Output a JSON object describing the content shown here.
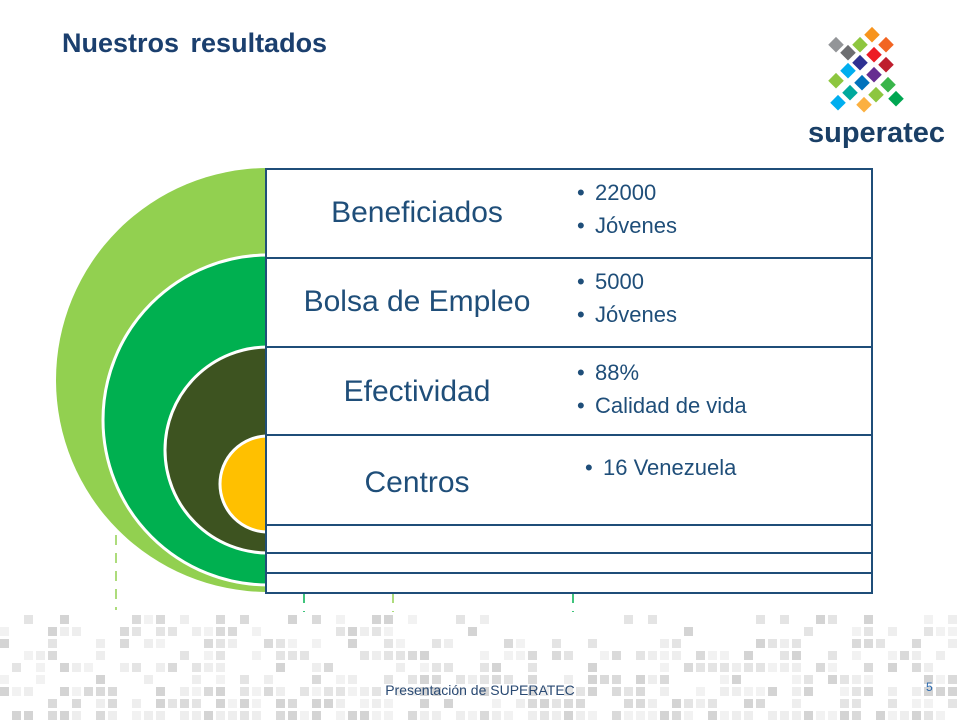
{
  "title": "Nuestros resultados",
  "logo": {
    "text": "superatec"
  },
  "rows": [
    {
      "label": "Beneficiados",
      "bullets": [
        "22000",
        "Jóvenes"
      ]
    },
    {
      "label": "Bolsa de Empleo",
      "bullets": [
        "5000",
        "Jóvenes"
      ]
    },
    {
      "label": "Efectividad",
      "bullets": [
        "88%",
        "Calidad de vida"
      ]
    },
    {
      "label": "Centros",
      "bullets": [
        "16 Venezuela"
      ]
    }
  ],
  "footer": "Presentación de SUPERATEC",
  "page_number": "5",
  "colors": {
    "title": "#1b3f6e",
    "ring_outer": "#92d050",
    "ring_second": "#00b050",
    "ring_third": "#3d5320",
    "ring_center": "#ffc000",
    "row_border": "#1f4e79",
    "text": "#1f4e79"
  }
}
